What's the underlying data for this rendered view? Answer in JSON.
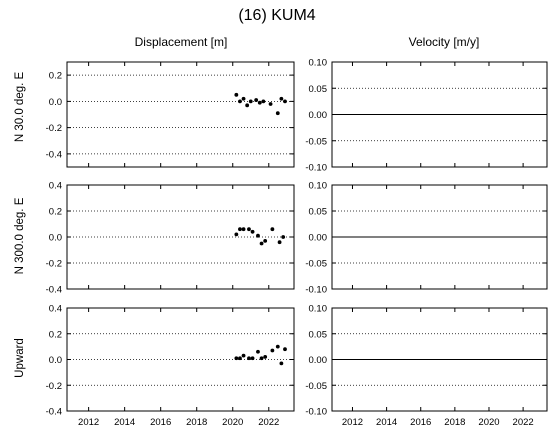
{
  "title": "(16) KUM4",
  "column_titles": [
    "Displacement [m]",
    "Velocity [m/y]"
  ],
  "row_labels": [
    "N 30.0 deg. E",
    "N 300.0 deg. E",
    "Upward"
  ],
  "x_tick_labels": [
    "2012",
    "2014",
    "2016",
    "2018",
    "2020",
    "2022"
  ],
  "colors": {
    "points": "#000000",
    "axes": "#000000",
    "grid": "#000000",
    "zero_line": "#000000"
  },
  "chart_data": [
    {
      "type": "scatter",
      "panel": "displacement-north30",
      "column": "Displacement [m]",
      "row": "N 30.0 deg. E",
      "xlim": [
        2010.8,
        2023.4
      ],
      "ylim": [
        -0.5,
        0.3
      ],
      "yticks": [
        0.2,
        0.0,
        -0.2,
        -0.4
      ],
      "ytick_labels": [
        "0.2",
        "0.0",
        "-0.2",
        "-0.4"
      ],
      "xticks": [
        2012,
        2014,
        2016,
        2018,
        2020,
        2022
      ],
      "grid": true,
      "grid_style": "dotted",
      "points": [
        [
          2020.2,
          0.05
        ],
        [
          2020.4,
          0.0
        ],
        [
          2020.6,
          0.02
        ],
        [
          2020.8,
          -0.03
        ],
        [
          2021.0,
          0.0
        ],
        [
          2021.3,
          0.01
        ],
        [
          2021.5,
          -0.01
        ],
        [
          2021.7,
          0.0
        ],
        [
          2022.1,
          -0.02
        ],
        [
          2022.5,
          -0.09
        ],
        [
          2022.7,
          0.02
        ],
        [
          2022.9,
          0.0
        ]
      ]
    },
    {
      "type": "line",
      "panel": "velocity-north30",
      "column": "Velocity [m/y]",
      "row": "N 30.0 deg. E",
      "xlim": [
        2010.8,
        2023.4
      ],
      "ylim": [
        -0.1,
        0.1
      ],
      "yticks": [
        0.1,
        0.05,
        0.0,
        -0.05,
        -0.1
      ],
      "ytick_labels": [
        "0.10",
        "0.05",
        "0.00",
        "-0.05",
        "-0.10"
      ],
      "xticks": [
        2012,
        2014,
        2016,
        2018,
        2020,
        2022
      ],
      "grid": true,
      "grid_style": "dotted",
      "x": [
        2010.8,
        2023.4
      ],
      "y": [
        0.0,
        0.0
      ]
    },
    {
      "type": "scatter",
      "panel": "displacement-north300",
      "column": "Displacement [m]",
      "row": "N 300.0 deg. E",
      "xlim": [
        2010.8,
        2023.4
      ],
      "ylim": [
        -0.4,
        0.4
      ],
      "yticks": [
        0.4,
        0.2,
        0.0,
        -0.2,
        -0.4
      ],
      "ytick_labels": [
        "0.4",
        "0.2",
        "0.0",
        "-0.2",
        "-0.4"
      ],
      "xticks": [
        2012,
        2014,
        2016,
        2018,
        2020,
        2022
      ],
      "grid": true,
      "grid_style": "dotted",
      "points": [
        [
          2020.2,
          0.02
        ],
        [
          2020.4,
          0.06
        ],
        [
          2020.6,
          0.06
        ],
        [
          2020.9,
          0.06
        ],
        [
          2021.1,
          0.04
        ],
        [
          2021.4,
          0.01
        ],
        [
          2021.6,
          -0.05
        ],
        [
          2021.8,
          -0.03
        ],
        [
          2022.2,
          0.06
        ],
        [
          2022.6,
          -0.04
        ],
        [
          2022.8,
          0.0
        ]
      ]
    },
    {
      "type": "line",
      "panel": "velocity-north300",
      "column": "Velocity [m/y]",
      "row": "N 300.0 deg. E",
      "xlim": [
        2010.8,
        2023.4
      ],
      "ylim": [
        -0.1,
        0.1
      ],
      "yticks": [
        0.1,
        0.05,
        0.0,
        -0.05,
        -0.1
      ],
      "ytick_labels": [
        "0.10",
        "0.05",
        "0.00",
        "-0.05",
        "-0.10"
      ],
      "xticks": [
        2012,
        2014,
        2016,
        2018,
        2020,
        2022
      ],
      "grid": true,
      "grid_style": "dotted",
      "x": [
        2010.8,
        2023.4
      ],
      "y": [
        0.0,
        0.0
      ]
    },
    {
      "type": "scatter",
      "panel": "displacement-upward",
      "column": "Displacement [m]",
      "row": "Upward",
      "xlim": [
        2010.8,
        2023.4
      ],
      "ylim": [
        -0.4,
        0.4
      ],
      "yticks": [
        0.4,
        0.2,
        0.0,
        -0.2,
        -0.4
      ],
      "ytick_labels": [
        "0.4",
        "0.2",
        "0.0",
        "-0.2",
        "-0.4"
      ],
      "xticks": [
        2012,
        2014,
        2016,
        2018,
        2020,
        2022
      ],
      "grid": true,
      "grid_style": "dotted",
      "points": [
        [
          2020.2,
          0.01
        ],
        [
          2020.4,
          0.01
        ],
        [
          2020.6,
          0.03
        ],
        [
          2020.9,
          0.01
        ],
        [
          2021.1,
          0.01
        ],
        [
          2021.4,
          0.06
        ],
        [
          2021.6,
          0.01
        ],
        [
          2021.8,
          0.02
        ],
        [
          2022.2,
          0.07
        ],
        [
          2022.5,
          0.1
        ],
        [
          2022.7,
          -0.03
        ],
        [
          2022.9,
          0.08
        ]
      ]
    },
    {
      "type": "line",
      "panel": "velocity-upward",
      "column": "Velocity [m/y]",
      "row": "Upward",
      "xlim": [
        2010.8,
        2023.4
      ],
      "ylim": [
        -0.1,
        0.1
      ],
      "yticks": [
        0.1,
        0.05,
        0.0,
        -0.05,
        -0.1
      ],
      "ytick_labels": [
        "0.10",
        "0.05",
        "0.00",
        "-0.05",
        "-0.10"
      ],
      "xticks": [
        2012,
        2014,
        2016,
        2018,
        2020,
        2022
      ],
      "grid": true,
      "grid_style": "dotted",
      "x": [
        2010.8,
        2023.4
      ],
      "y": [
        0.0,
        0.0
      ]
    }
  ]
}
